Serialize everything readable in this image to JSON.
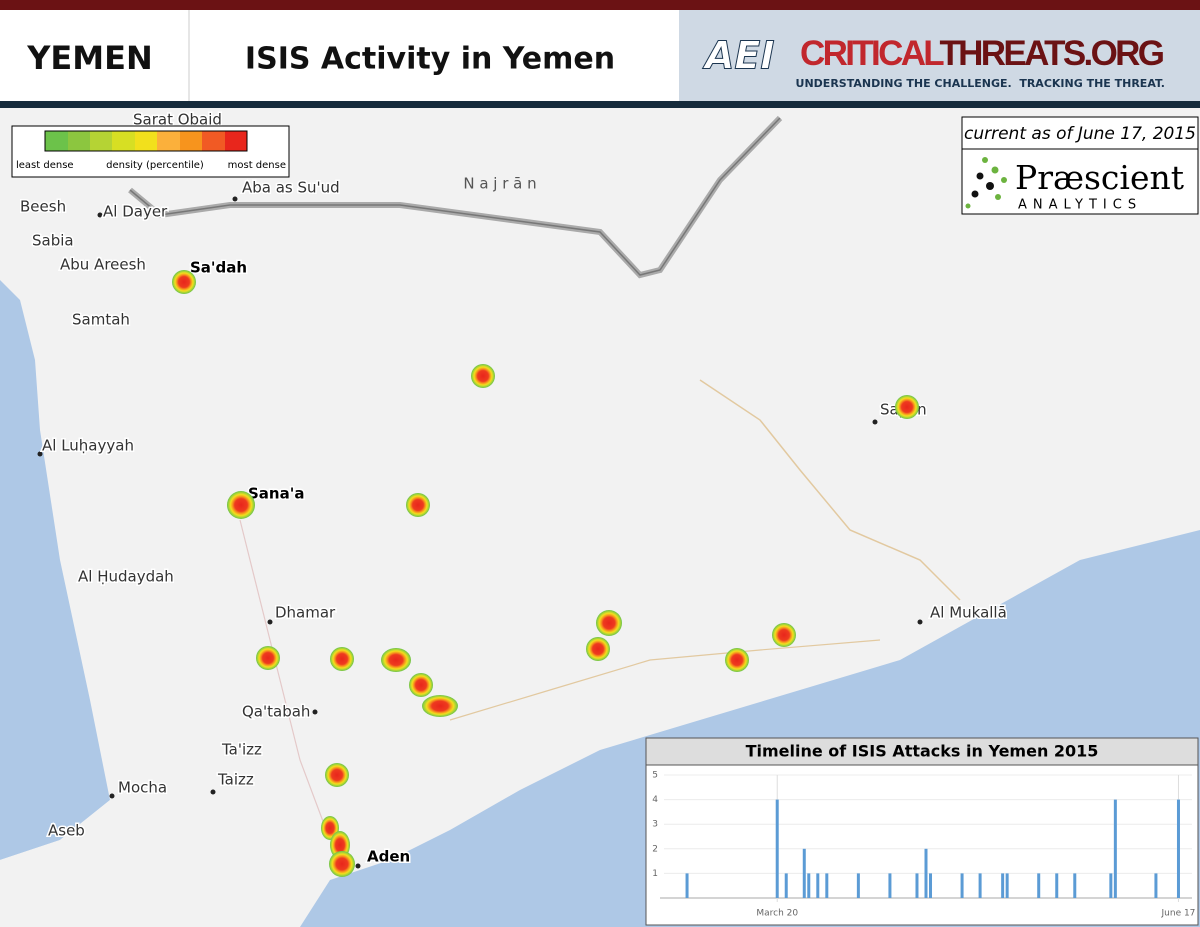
{
  "header": {
    "country": "YEMEN",
    "title": "ISIS Activity in Yemen",
    "logo": "AEI",
    "brand_a": "CRITICAL",
    "brand_b": "THREATS.ORG",
    "tagline": "UNDERSTANDING THE CHALLENGE.  TRACKING THE THREAT."
  },
  "legend": {
    "low": "least dense",
    "middle": "density (percentile)",
    "high": "most dense"
  },
  "date": "current as of June 17, 2015",
  "partner": {
    "name": "Præscient",
    "subtitle": "ANALYTICS"
  },
  "map": {
    "region": "N a j r ā n",
    "places": [
      "Sarat Obaid",
      "Aba as Su'ud",
      "Beesh",
      "Al Dayer",
      "Sabia",
      "Abu Areesh",
      "Sa'dah",
      "Samtah",
      "Al Luḥayyah",
      "Sana'a",
      "Al Ḥudaydah",
      "Dhamar",
      "Qa'tabah",
      "Ta'izz",
      "Taizz",
      "Mocha",
      "Aseb",
      "Aden",
      "Al Mukallā",
      "Sayun"
    ]
  },
  "chart_data": {
    "type": "bar",
    "title": "Timeline of ISIS Attacks in Yemen 2015",
    "color": "#5b9bd5",
    "x": [
      "2015-02-28",
      "2015-03-20",
      "2015-03-22",
      "2015-03-26",
      "2015-03-27",
      "2015-03-29",
      "2015-03-31",
      "2015-04-07",
      "2015-04-14",
      "2015-04-20",
      "2015-04-22",
      "2015-04-23",
      "2015-04-30",
      "2015-05-04",
      "2015-05-09",
      "2015-05-10",
      "2015-05-17",
      "2015-05-21",
      "2015-05-25",
      "2015-06-02",
      "2015-06-03",
      "2015-06-12",
      "2015-06-17"
    ],
    "values": [
      1,
      4,
      1,
      2,
      1,
      1,
      1,
      1,
      1,
      1,
      2,
      1,
      1,
      1,
      1,
      1,
      1,
      1,
      1,
      1,
      4,
      1,
      4
    ],
    "xlim": [
      "2015-02-22",
      "2015-06-20"
    ],
    "xticks": [
      {
        "value": "2015-03-20",
        "label": "March 20"
      },
      {
        "value": "2015-06-17",
        "label": "June 17"
      }
    ],
    "ylim": [
      0,
      5
    ],
    "yticks": [
      1,
      2,
      3,
      4,
      5
    ],
    "grid": true
  }
}
